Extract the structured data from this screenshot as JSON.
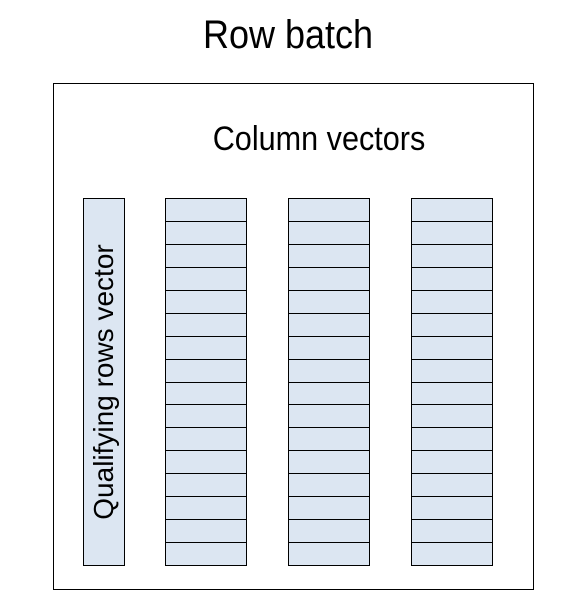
{
  "diagram": {
    "title": "Row batch",
    "column_vectors_label": "Column vectors",
    "qualifying_rows_label": "Qualifying rows vector",
    "column_vector_count": 3,
    "cells_per_vector": 16,
    "colors": {
      "vector_fill": "#dce6f2",
      "border": "#000000",
      "background": "#ffffff"
    }
  }
}
